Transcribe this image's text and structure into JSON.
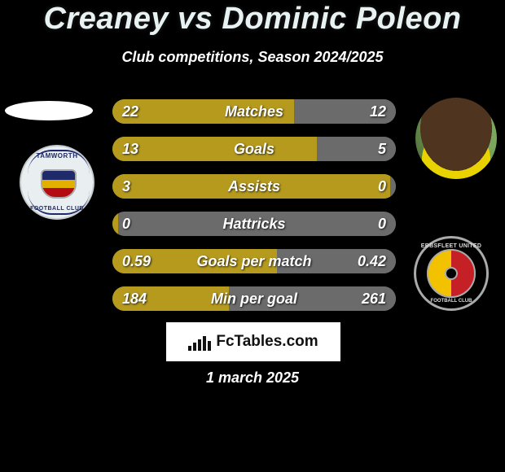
{
  "title_parts": {
    "p1": "Creaney",
    "vs": "vs",
    "p2": "Dominic Poleon"
  },
  "subtitle": "Club competitions, Season 2024/2025",
  "date": "1 march 2025",
  "crest_left": {
    "text_top": "TAMWORTH",
    "text_bottom": "FOOTBALL CLUB"
  },
  "crest_right": {
    "text_top": "EBBSFLEET UNITED",
    "text_bottom": "FOOTBALL CLUB"
  },
  "fctables": {
    "label": "FcTables.com",
    "mini_bars": [
      6,
      10,
      14,
      18,
      12
    ]
  },
  "colors": {
    "title": "#e9f2f2",
    "bar_left": "#b59a1e",
    "bar_right": "#6b6b6b",
    "bar_track": "#6b6b6b",
    "text": "#ffffff",
    "background": "#000000"
  },
  "bars": [
    {
      "label": "Matches",
      "left_val": "22",
      "right_val": "12",
      "left_pct": 64,
      "right_pct": 36
    },
    {
      "label": "Goals",
      "left_val": "13",
      "right_val": "5",
      "left_pct": 72,
      "right_pct": 28
    },
    {
      "label": "Assists",
      "left_val": "3",
      "right_val": "0",
      "left_pct": 98,
      "right_pct": 2
    },
    {
      "label": "Hattricks",
      "left_val": "0",
      "right_val": "0",
      "left_pct": 2,
      "right_pct": 2
    },
    {
      "label": "Goals per match",
      "left_val": "0.59",
      "right_val": "0.42",
      "left_pct": 58,
      "right_pct": 42
    },
    {
      "label": "Min per goal",
      "left_val": "184",
      "right_val": "261",
      "left_pct": 41,
      "right_pct": 59
    }
  ]
}
